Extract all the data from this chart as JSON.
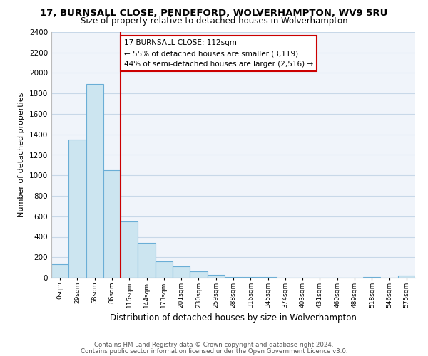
{
  "title1": "17, BURNSALL CLOSE, PENDEFORD, WOLVERHAMPTON, WV9 5RU",
  "title2": "Size of property relative to detached houses in Wolverhampton",
  "xlabel": "Distribution of detached houses by size in Wolverhampton",
  "ylabel": "Number of detached properties",
  "bin_labels": [
    "0sqm",
    "29sqm",
    "58sqm",
    "86sqm",
    "115sqm",
    "144sqm",
    "173sqm",
    "201sqm",
    "230sqm",
    "259sqm",
    "288sqm",
    "316sqm",
    "345sqm",
    "374sqm",
    "403sqm",
    "431sqm",
    "460sqm",
    "489sqm",
    "518sqm",
    "546sqm",
    "575sqm"
  ],
  "bar_values": [
    130,
    1350,
    1890,
    1050,
    550,
    340,
    160,
    110,
    60,
    30,
    10,
    5,
    5,
    2,
    2,
    1,
    0,
    0,
    5,
    0,
    20
  ],
  "bar_color": "#cce5f0",
  "bar_edge_color": "#6aaed6",
  "vline_color": "#cc0000",
  "annotation_line1": "17 BURNSALL CLOSE: 112sqm",
  "annotation_line2": "← 55% of detached houses are smaller (3,119)",
  "annotation_line3": "44% of semi-detached houses are larger (2,516) →",
  "annotation_box_color": "#ffffff",
  "annotation_box_edge": "#cc0000",
  "ylim": [
    0,
    2400
  ],
  "yticks": [
    0,
    200,
    400,
    600,
    800,
    1000,
    1200,
    1400,
    1600,
    1800,
    2000,
    2200,
    2400
  ],
  "footer1": "Contains HM Land Registry data © Crown copyright and database right 2024.",
  "footer2": "Contains public sector information licensed under the Open Government Licence v3.0.",
  "figwidth": 6.0,
  "figheight": 5.0,
  "dpi": 100
}
